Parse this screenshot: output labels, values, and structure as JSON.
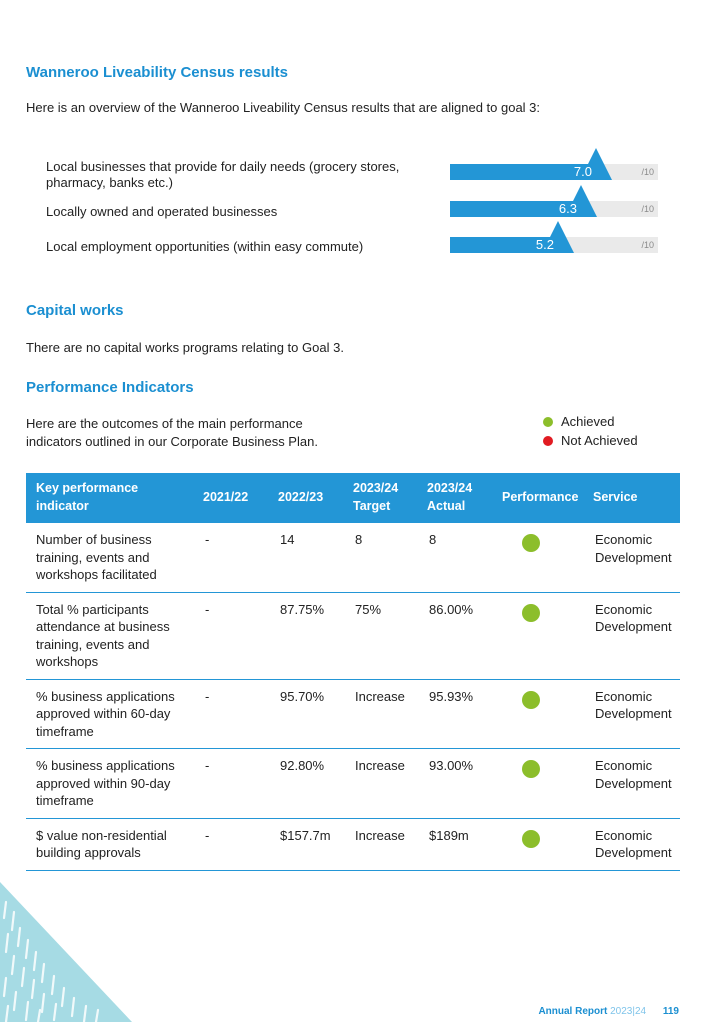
{
  "census": {
    "heading": "Wanneroo Liveability Census results",
    "intro": "Here is an overview of the Wanneroo Liveability Census results that are aligned to goal 3:",
    "items": [
      {
        "label": "Local businesses that provide for daily needs (grocery stores, pharmacy, banks etc.)",
        "score_text": "7.0",
        "score": 7.0,
        "max_label": "/10"
      },
      {
        "label": "Locally owned and operated businesses",
        "score_text": "6.3",
        "score": 6.3,
        "max_label": "/10"
      },
      {
        "label": "Local employment opportunities (within easy commute)",
        "score_text": "5.2",
        "score": 5.2,
        "max_label": "/10"
      }
    ],
    "bar_color": "#2396d6"
  },
  "capital": {
    "heading": "Capital works",
    "text": "There are no capital works programs relating to Goal 3."
  },
  "performance": {
    "heading": "Performance Indicators",
    "intro": "Here are the outcomes of the main performance indicators outlined in our Corporate Business Plan.",
    "legend": [
      {
        "label": "Achieved",
        "color": "#8cbe2b"
      },
      {
        "label": "Not Achieved",
        "color": "#e11b22"
      }
    ],
    "columns": [
      "Key performance indicator",
      "2021/22",
      "2022/23",
      "2023/24 Target",
      "2023/24 Actual",
      "Performance",
      "Service"
    ],
    "rows": [
      {
        "indicator": "Number of business training, events and workshops facilitated",
        "y2122": "-",
        "y2223": "14",
        "target": "8",
        "actual": "8",
        "performance": "Achieved",
        "service": "Economic Development"
      },
      {
        "indicator": "Total % participants attendance at business training, events and workshops",
        "y2122": "-",
        "y2223": "87.75%",
        "target": "75%",
        "actual": "86.00%",
        "performance": "Achieved",
        "service": "Economic Development"
      },
      {
        "indicator": "% business applications approved within 60-day timeframe",
        "y2122": "-",
        "y2223": "95.70%",
        "target": "Increase",
        "actual": "95.93%",
        "performance": "Achieved",
        "service": "Economic Development"
      },
      {
        "indicator": "% business applications approved within 90-day timeframe",
        "y2122": "-",
        "y2223": "92.80%",
        "target": "Increase",
        "actual": "93.00%",
        "performance": "Achieved",
        "service": "Economic Development"
      },
      {
        "indicator": "$ value non-residential building approvals",
        "y2122": "-",
        "y2223": "$157.7m",
        "target": "Increase",
        "actual": "$189m",
        "performance": "Achieved",
        "service": "Economic Development"
      }
    ]
  },
  "footer": {
    "report_label": "Annual Report",
    "year": "2023|24",
    "page": "119"
  },
  "decor": {
    "corner_color": "#a6dbe4"
  }
}
